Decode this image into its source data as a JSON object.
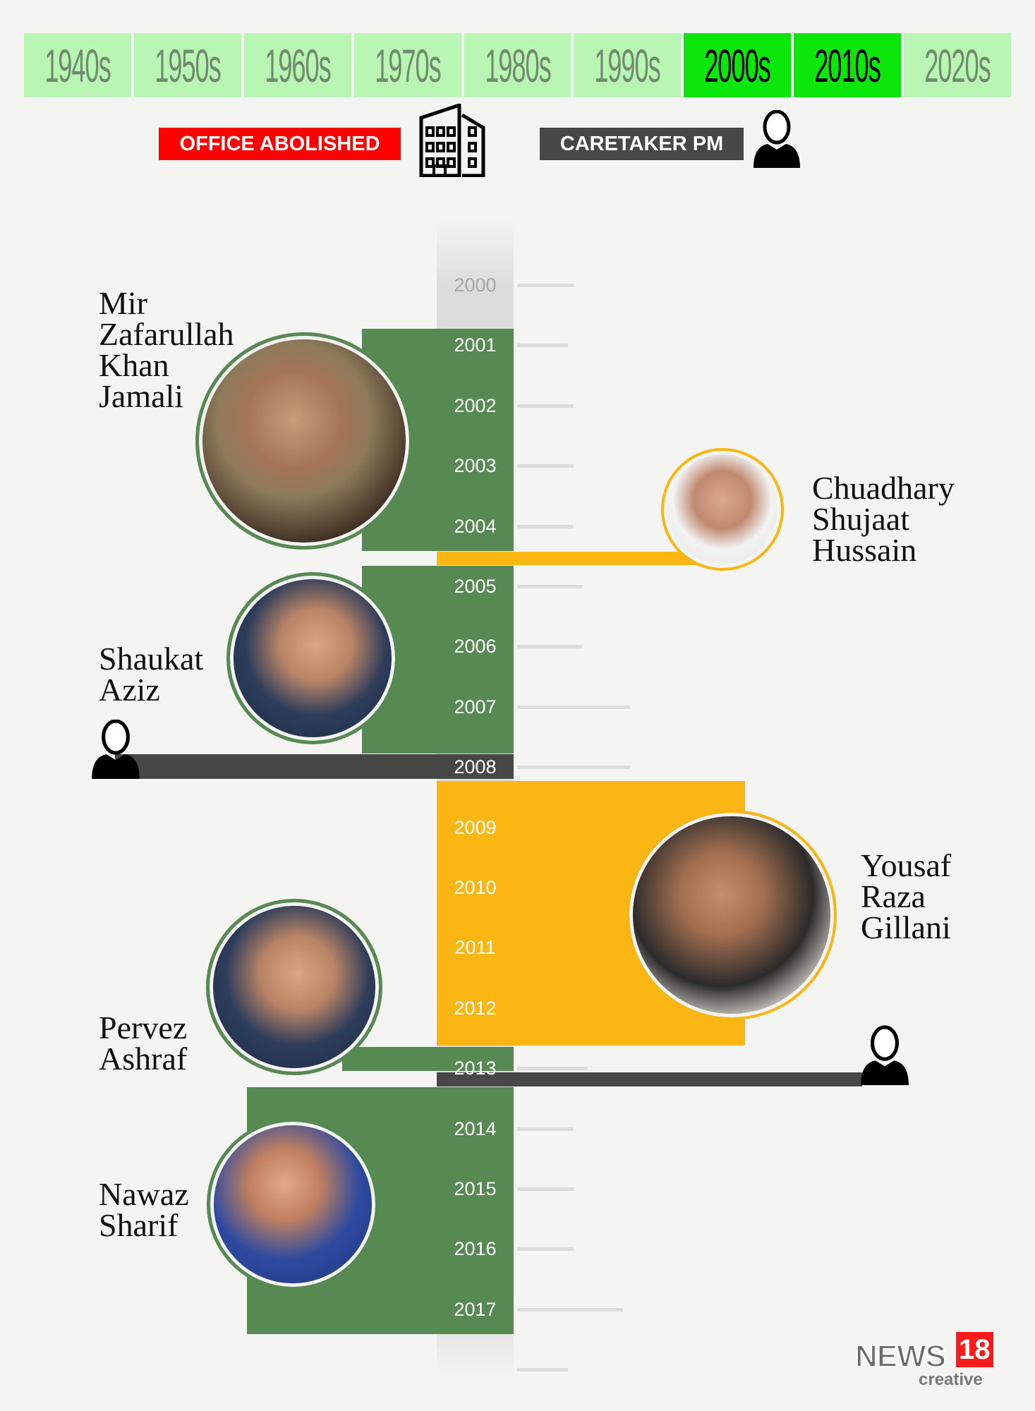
{
  "decades": [
    {
      "label": "1940s",
      "active": false
    },
    {
      "label": "1950s",
      "active": false
    },
    {
      "label": "1960s",
      "active": false
    },
    {
      "label": "1970s",
      "active": false
    },
    {
      "label": "1980s",
      "active": false
    },
    {
      "label": "1990s",
      "active": false
    },
    {
      "label": "2000s",
      "active": true
    },
    {
      "label": "2010s",
      "active": true
    },
    {
      "label": "2020s",
      "active": false
    }
  ],
  "legend": {
    "office_abolished": "OFFICE ABOLISHED",
    "caretaker": "CARETAKER PM"
  },
  "colors": {
    "pm_term": "#578a53",
    "caretaker_term": "#fbb613",
    "caretaker_gap": "#474747",
    "abolished": "#ff0000",
    "active_decade": "#0be60b",
    "decade": "#b9f5b3"
  },
  "years": [
    "2000",
    "2001",
    "2002",
    "2003",
    "2004",
    "2005",
    "2006",
    "2007",
    "2008",
    "2009",
    "2010",
    "2011",
    "2012",
    "2013",
    "2014",
    "2015",
    "2016",
    "2017"
  ],
  "people": {
    "jamali": "Mir Zafarullah Khan Jamali",
    "shujaat": "Chuadhary Shujaat Hussain",
    "aziz": "Shaukat Aziz",
    "gillani": "Yousaf Raza Gillani",
    "pervez": "Pervez Ashraf",
    "sharif": "Nawaz Sharif"
  },
  "logo": {
    "brand": "NEWS",
    "number": "18",
    "sub": "creative"
  }
}
